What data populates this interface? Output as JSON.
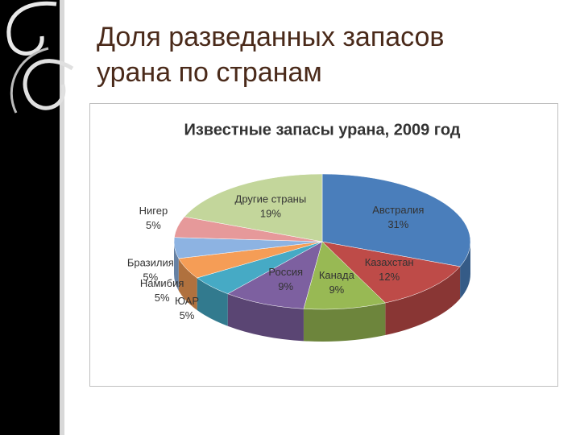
{
  "slide": {
    "title": "Доля разведанных запасов урана по странам"
  },
  "chart_data": {
    "type": "pie3d",
    "title": "Известные запасы урана, 2009 год",
    "categories": [
      "Австралия",
      "Казахстан",
      "Канада",
      "Россия",
      "ЮАР",
      "Намибия",
      "Бразилия",
      "Нигер",
      "Другие страны"
    ],
    "values": [
      31,
      12,
      9,
      9,
      5,
      5,
      5,
      5,
      19
    ],
    "value_labels": [
      "31%",
      "12%",
      "9%",
      "9%",
      "5%",
      "5%",
      "5%",
      "5%",
      "19%"
    ],
    "colors": [
      "#4a7ebb",
      "#be4b48",
      "#98b954",
      "#7d60a0",
      "#46aac5",
      "#f59d56",
      "#8db3e2",
      "#e6999a",
      "#c3d69b"
    ]
  }
}
